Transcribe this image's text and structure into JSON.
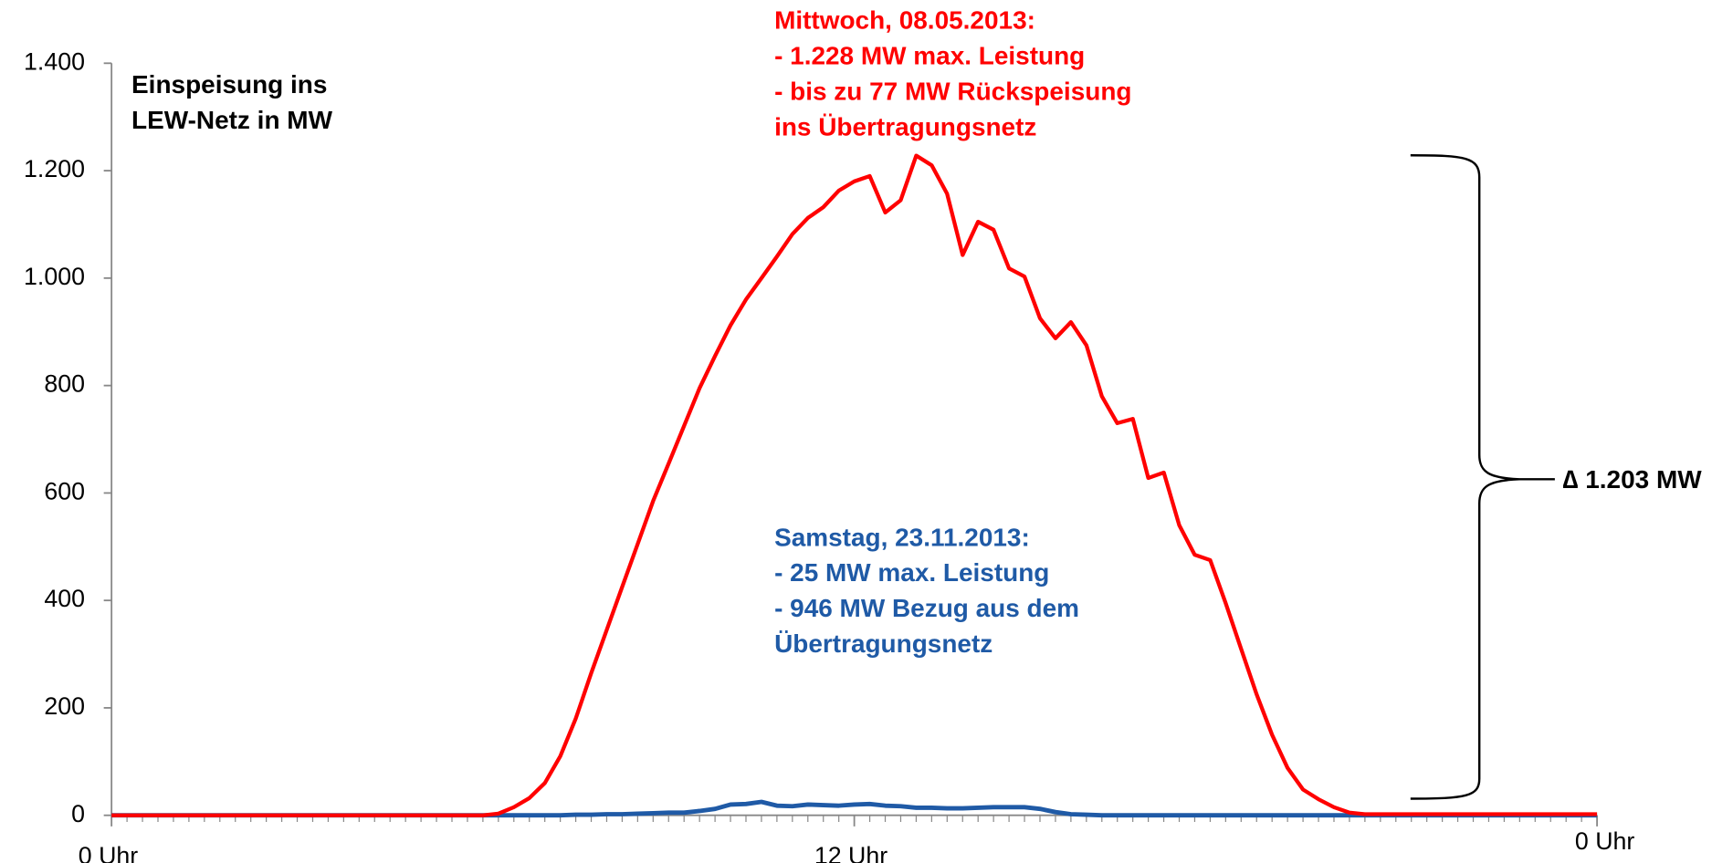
{
  "chart_data": {
    "type": "line",
    "title_lines": [
      "Einspeisung ins",
      "LEW-Netz in MW"
    ],
    "annotations": [
      {
        "color": "#ff0000",
        "lines": [
          "Mittwoch, 08.05.2013:",
          "- 1.228 MW max. Leistung",
          "- bis zu 77 MW Rückspeisung",
          "ins Übertragungsnetz"
        ]
      },
      {
        "color": "#1f5aa6",
        "lines": [
          "Samstag, 23.11.2013:",
          "- 25 MW max. Leistung",
          "- 946 MW Bezug aus dem",
          "Übertragungsnetz"
        ]
      }
    ],
    "delta_label": "∆ 1.203 MW",
    "xlim": [
      0,
      24
    ],
    "xticks": [
      {
        "value": 0,
        "label": "0 Uhr"
      },
      {
        "value": 12,
        "label": "12 Uhr"
      },
      {
        "value": 24,
        "label": "0 Uhr"
      }
    ],
    "ylim": [
      0,
      1400
    ],
    "yticks": [
      0,
      200,
      400,
      600,
      800,
      {
        "value": 1000,
        "label": "1.000"
      },
      {
        "value": 1200,
        "label": "1.200"
      },
      {
        "value": 1400,
        "label": "1.400"
      }
    ],
    "x": [
      0,
      0.25,
      0.5,
      0.75,
      1,
      1.25,
      1.5,
      1.75,
      2,
      2.25,
      2.5,
      2.75,
      3,
      3.25,
      3.5,
      3.75,
      4,
      4.25,
      4.5,
      4.75,
      5,
      5.25,
      5.5,
      5.75,
      6,
      6.25,
      6.5,
      6.75,
      7,
      7.25,
      7.5,
      7.75,
      8,
      8.25,
      8.5,
      8.75,
      9,
      9.25,
      9.5,
      9.75,
      10,
      10.25,
      10.5,
      10.75,
      11,
      11.25,
      11.5,
      11.75,
      12,
      12.25,
      12.5,
      12.75,
      13,
      13.25,
      13.5,
      13.75,
      14,
      14.25,
      14.5,
      14.75,
      15,
      15.25,
      15.5,
      15.75,
      16,
      16.25,
      16.5,
      16.75,
      17,
      17.25,
      17.5,
      17.75,
      18,
      18.25,
      18.5,
      18.75,
      19,
      19.25,
      19.5,
      19.75,
      20,
      20.25,
      20.5,
      20.75,
      21,
      21.25,
      21.5,
      21.75,
      22,
      22.25,
      22.5,
      22.75,
      23,
      23.25,
      23.5,
      23.75,
      24
    ],
    "series": [
      {
        "name": "Mittwoch, 08.05.2013",
        "color": "#ff0000",
        "values": [
          0,
          0,
          0,
          0,
          0,
          0,
          0,
          0,
          0,
          0,
          0,
          0,
          0,
          0,
          0,
          0,
          0,
          0,
          0,
          0,
          0,
          0,
          0,
          0,
          0,
          3,
          15,
          32,
          60,
          110,
          180,
          265,
          345,
          425,
          505,
          585,
          655,
          725,
          795,
          855,
          912,
          960,
          1000,
          1040,
          1082,
          1112,
          1132,
          1163,
          1180,
          1190,
          1122,
          1145,
          1228,
          1210,
          1157,
          1043,
          1105,
          1090,
          1018,
          1003,
          925,
          888,
          918,
          875,
          780,
          730,
          738,
          628,
          638,
          540,
          485,
          475,
          395,
          310,
          225,
          150,
          88,
          48,
          30,
          15,
          5,
          2,
          2,
          2,
          2,
          2,
          2,
          2,
          2,
          2,
          2,
          2,
          2,
          2,
          2,
          2,
          2
        ]
      },
      {
        "name": "Samstag, 23.11.2013",
        "color": "#1f5aa6",
        "values": [
          0,
          0,
          0,
          0,
          0,
          0,
          0,
          0,
          0,
          0,
          0,
          0,
          0,
          0,
          0,
          0,
          0,
          0,
          0,
          0,
          0,
          0,
          0,
          0,
          0,
          0,
          0,
          0,
          0,
          0,
          1,
          1,
          2,
          2,
          3,
          4,
          5,
          5,
          8,
          12,
          20,
          21,
          25,
          18,
          17,
          20,
          19,
          18,
          20,
          21,
          18,
          17,
          14,
          14,
          13,
          13,
          14,
          15,
          15,
          15,
          12,
          6,
          2,
          1,
          0,
          0,
          0,
          0,
          0,
          0,
          0,
          0,
          0,
          0,
          0,
          0,
          0,
          0,
          0,
          0,
          0,
          0,
          0,
          0,
          0,
          0,
          0,
          0,
          0,
          0,
          0,
          0,
          0,
          0,
          0,
          0,
          0
        ]
      }
    ]
  }
}
